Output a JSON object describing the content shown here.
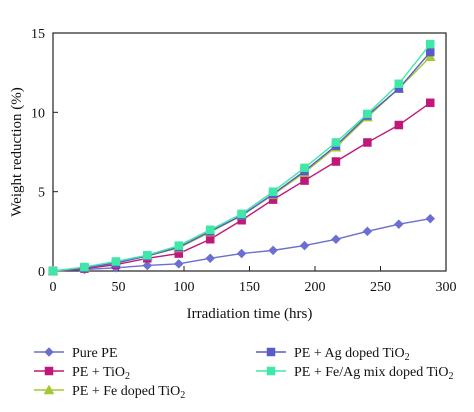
{
  "chart_data": {
    "type": "line",
    "xlabel": "Irradiation time (hrs)",
    "ylabel": "Weight reduction (%)",
    "xlim": [
      0,
      300
    ],
    "ylim": [
      0,
      15
    ],
    "xticks": [
      0,
      50,
      100,
      150,
      200,
      250,
      300
    ],
    "yticks": [
      0,
      5,
      10,
      15
    ],
    "x": [
      0,
      24,
      48,
      72,
      96,
      120,
      144,
      168,
      192,
      216,
      240,
      264,
      288
    ],
    "grid": false,
    "legend_position": "bottom",
    "series": [
      {
        "name": "Pure PE",
        "name_parts": [
          "Pure PE",
          ""
        ],
        "color": "#6a6fd0",
        "marker": "diamond",
        "values": [
          0,
          0.1,
          0.2,
          0.35,
          0.45,
          0.8,
          1.1,
          1.3,
          1.6,
          2.0,
          2.5,
          2.95,
          3.3
        ]
      },
      {
        "name": "PE + TiO2",
        "name_parts": [
          "PE + TiO",
          "2"
        ],
        "color": "#c0187a",
        "marker": "square",
        "values": [
          0,
          0.15,
          0.4,
          0.8,
          1.1,
          2.0,
          3.2,
          4.5,
          5.7,
          6.9,
          8.1,
          9.2,
          10.6
        ]
      },
      {
        "name": "PE + Fe doped TiO2",
        "name_parts": [
          "PE + Fe doped TiO",
          "2"
        ],
        "color": "#a4c832",
        "marker": "triangle",
        "values": [
          0,
          0.2,
          0.5,
          0.95,
          1.45,
          2.45,
          3.5,
          4.8,
          6.2,
          7.8,
          9.7,
          11.5,
          13.5
        ]
      },
      {
        "name": "PE + Ag doped TiO2",
        "name_parts": [
          "PE + Ag doped TiO",
          "2"
        ],
        "color": "#5a5ac8",
        "marker": "square",
        "values": [
          0,
          0.2,
          0.5,
          0.95,
          1.5,
          2.5,
          3.5,
          4.85,
          6.3,
          7.9,
          9.8,
          11.5,
          13.8
        ]
      },
      {
        "name": "PE + Fe/Ag mix doped TiO2",
        "name_parts": [
          "PE + Fe/Ag mix doped TiO",
          "2"
        ],
        "color": "#3fe8a8",
        "marker": "square",
        "values": [
          0,
          0.25,
          0.6,
          1.0,
          1.6,
          2.6,
          3.6,
          5.0,
          6.5,
          8.1,
          9.9,
          11.8,
          14.3
        ]
      }
    ]
  }
}
